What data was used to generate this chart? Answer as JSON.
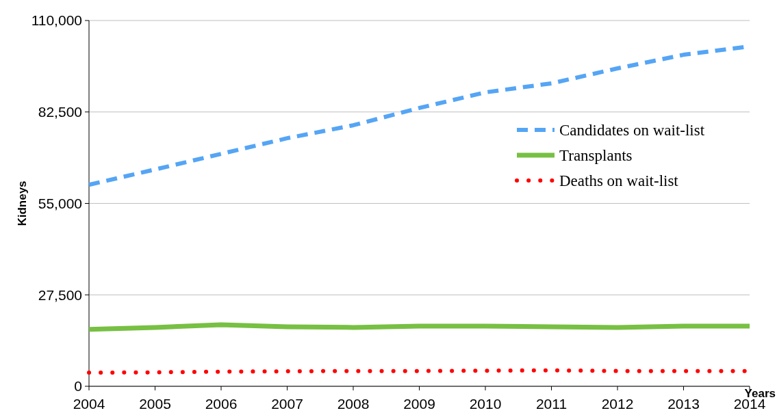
{
  "chart_data": {
    "type": "line",
    "xlabel": "Years",
    "ylabel": "Kidneys",
    "x": [
      2004,
      2005,
      2006,
      2007,
      2008,
      2009,
      2010,
      2011,
      2012,
      2013,
      2014
    ],
    "xlim": [
      2004,
      2014
    ],
    "xticks": [
      2004,
      2005,
      2006,
      2007,
      2008,
      2009,
      2010,
      2011,
      2012,
      2013,
      2014
    ],
    "ylim": [
      0,
      110000
    ],
    "yticks": [
      {
        "value": 0,
        "label": "0"
      },
      {
        "value": 27500,
        "label": "27,500"
      },
      {
        "value": 55000,
        "label": "55,000"
      },
      {
        "value": 82500,
        "label": "82,500"
      },
      {
        "value": 110000,
        "label": "110,000"
      }
    ],
    "grid": "y",
    "legend": "right",
    "series": [
      {
        "name": "Candidates on wait-list",
        "color": "#55a5f5",
        "line_style": "dashed",
        "values": [
          60600,
          65200,
          69900,
          74600,
          78500,
          83700,
          88400,
          91100,
          95600,
          99700,
          102200
        ]
      },
      {
        "name": "Transplants",
        "color": "#77c043",
        "line_style": "solid",
        "values": [
          17100,
          17700,
          18500,
          17900,
          17700,
          18100,
          18100,
          17900,
          17700,
          18100,
          18100
        ]
      },
      {
        "name": "Deaths on wait-list",
        "color": "#ff0000",
        "line_style": "dotted",
        "values": [
          4100,
          4200,
          4400,
          4500,
          4600,
          4600,
          4700,
          4800,
          4600,
          4600,
          4600
        ]
      }
    ]
  }
}
